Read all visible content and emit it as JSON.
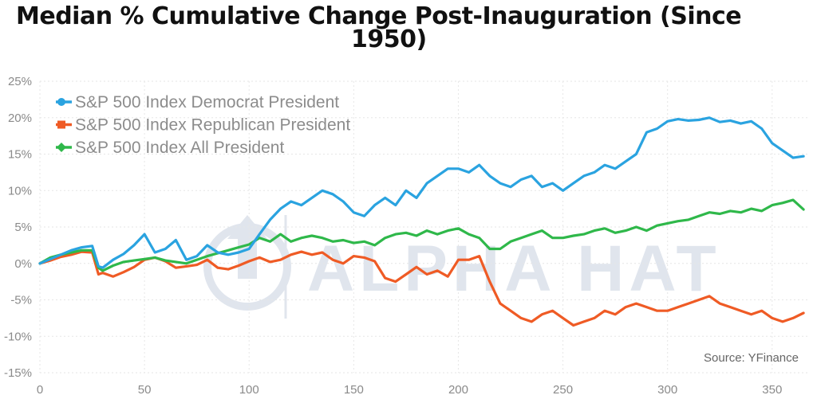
{
  "chart_data": {
    "type": "line",
    "title_line1": "Median % Cumulative Change Post-Inauguration (Since",
    "title_line2": "1950)",
    "x_ticks": [
      0,
      50,
      100,
      150,
      200,
      250,
      300,
      350
    ],
    "y_ticks": [
      "25%",
      "20%",
      "15%",
      "10%",
      "5%",
      "0%",
      "-5%",
      "-10%",
      "-15%"
    ],
    "y_tick_values": [
      25,
      20,
      15,
      10,
      5,
      0,
      -5,
      -10,
      -15
    ],
    "xlim": [
      0,
      368
    ],
    "ylim": [
      -15,
      25
    ],
    "grid": true,
    "legend_position": "top-left",
    "source": "Source: YFinance",
    "watermark": "ALPHA HAT",
    "series": [
      {
        "name": "S&P 500 Index Democrat President",
        "color": "#2aa3e0",
        "x": [
          0,
          5,
          10,
          15,
          20,
          25,
          28,
          30,
          35,
          40,
          45,
          50,
          55,
          60,
          65,
          70,
          75,
          80,
          85,
          90,
          95,
          100,
          105,
          110,
          115,
          120,
          125,
          130,
          135,
          140,
          145,
          150,
          155,
          160,
          165,
          170,
          175,
          180,
          185,
          190,
          195,
          200,
          205,
          210,
          215,
          220,
          225,
          230,
          235,
          240,
          245,
          250,
          255,
          260,
          265,
          270,
          275,
          280,
          285,
          290,
          295,
          300,
          305,
          310,
          315,
          320,
          325,
          330,
          335,
          340,
          345,
          350,
          355,
          360,
          365
        ],
        "y": [
          0,
          0.6,
          1.2,
          1.8,
          2.2,
          2.4,
          -0.4,
          -0.6,
          0.5,
          1.3,
          2.5,
          4.0,
          1.5,
          2.0,
          3.2,
          0.5,
          1.0,
          2.5,
          1.5,
          1.2,
          1.5,
          2.0,
          4.0,
          6.0,
          7.5,
          8.5,
          8.0,
          9.0,
          10.0,
          9.5,
          8.5,
          7.0,
          6.5,
          8.0,
          9.0,
          8.0,
          10.0,
          9.0,
          11.0,
          12.0,
          13.0,
          13.0,
          12.5,
          13.5,
          12.0,
          11.0,
          10.5,
          11.5,
          12.0,
          10.5,
          11.0,
          10.0,
          11.0,
          12.0,
          12.5,
          13.5,
          13.0,
          14.0,
          15.0,
          18.0,
          18.5,
          19.5,
          19.8,
          19.6,
          19.7,
          20.0,
          19.4,
          19.6,
          19.2,
          19.5,
          18.5,
          16.5,
          15.5,
          14.5,
          14.7
        ]
      },
      {
        "name": "S&P 500 Index Republican President",
        "color": "#ef5b25",
        "x": [
          0,
          5,
          10,
          15,
          20,
          25,
          28,
          30,
          35,
          40,
          45,
          50,
          55,
          60,
          65,
          70,
          75,
          80,
          85,
          90,
          95,
          100,
          105,
          110,
          115,
          120,
          125,
          130,
          135,
          140,
          145,
          150,
          155,
          160,
          165,
          170,
          175,
          180,
          185,
          190,
          195,
          200,
          205,
          210,
          215,
          220,
          225,
          230,
          235,
          240,
          245,
          250,
          255,
          260,
          265,
          270,
          275,
          280,
          285,
          290,
          295,
          300,
          305,
          310,
          315,
          320,
          325,
          330,
          335,
          340,
          345,
          350,
          355,
          360,
          365
        ],
        "y": [
          0,
          0.4,
          0.9,
          1.2,
          1.6,
          1.5,
          -1.5,
          -1.3,
          -1.8,
          -1.2,
          -0.5,
          0.5,
          0.8,
          0.3,
          -0.6,
          -0.4,
          -0.2,
          0.5,
          -0.6,
          -0.8,
          -0.3,
          0.3,
          0.8,
          0.2,
          0.5,
          1.2,
          1.6,
          1.2,
          1.5,
          0.5,
          0.0,
          1.0,
          0.8,
          0.3,
          -2.0,
          -2.5,
          -1.5,
          -0.5,
          -1.5,
          -1.0,
          -1.8,
          0.5,
          0.5,
          1.0,
          -2.5,
          -5.5,
          -6.5,
          -7.5,
          -8.0,
          -7.0,
          -6.5,
          -7.5,
          -8.5,
          -8.0,
          -7.5,
          -6.5,
          -7.0,
          -6.0,
          -5.5,
          -6.0,
          -6.5,
          -6.5,
          -6.0,
          -5.5,
          -5.0,
          -4.5,
          -5.5,
          -6.0,
          -6.5,
          -7.0,
          -6.5,
          -7.5,
          -8.0,
          -7.5,
          -6.8
        ]
      },
      {
        "name": "S&P 500 Index All President",
        "color": "#2fb84a",
        "x": [
          0,
          5,
          10,
          15,
          20,
          25,
          28,
          30,
          35,
          40,
          45,
          50,
          55,
          60,
          65,
          70,
          75,
          80,
          85,
          90,
          95,
          100,
          105,
          110,
          115,
          120,
          125,
          130,
          135,
          140,
          145,
          150,
          155,
          160,
          165,
          170,
          175,
          180,
          185,
          190,
          195,
          200,
          205,
          210,
          215,
          220,
          225,
          230,
          235,
          240,
          245,
          250,
          255,
          260,
          265,
          270,
          275,
          280,
          285,
          290,
          295,
          300,
          305,
          310,
          315,
          320,
          325,
          330,
          335,
          340,
          345,
          350,
          355,
          360,
          365
        ],
        "y": [
          0,
          0.8,
          1.2,
          1.5,
          1.8,
          1.8,
          -0.6,
          -1.0,
          -0.3,
          0.2,
          0.4,
          0.6,
          0.8,
          0.4,
          0.2,
          0.0,
          0.5,
          1.0,
          1.4,
          1.8,
          2.2,
          2.6,
          3.5,
          3.0,
          4.0,
          3.0,
          3.5,
          3.8,
          3.5,
          3.0,
          3.2,
          2.8,
          3.0,
          2.5,
          3.5,
          4.0,
          4.2,
          3.8,
          4.5,
          4.0,
          4.5,
          4.8,
          4.0,
          3.5,
          2.0,
          2.0,
          3.0,
          3.5,
          4.0,
          4.5,
          3.5,
          3.5,
          3.8,
          4.0,
          4.5,
          4.8,
          4.2,
          4.5,
          5.0,
          4.5,
          5.2,
          5.5,
          5.8,
          6.0,
          6.5,
          7.0,
          6.8,
          7.2,
          7.0,
          7.5,
          7.2,
          8.0,
          8.3,
          8.7,
          7.4
        ]
      }
    ]
  }
}
